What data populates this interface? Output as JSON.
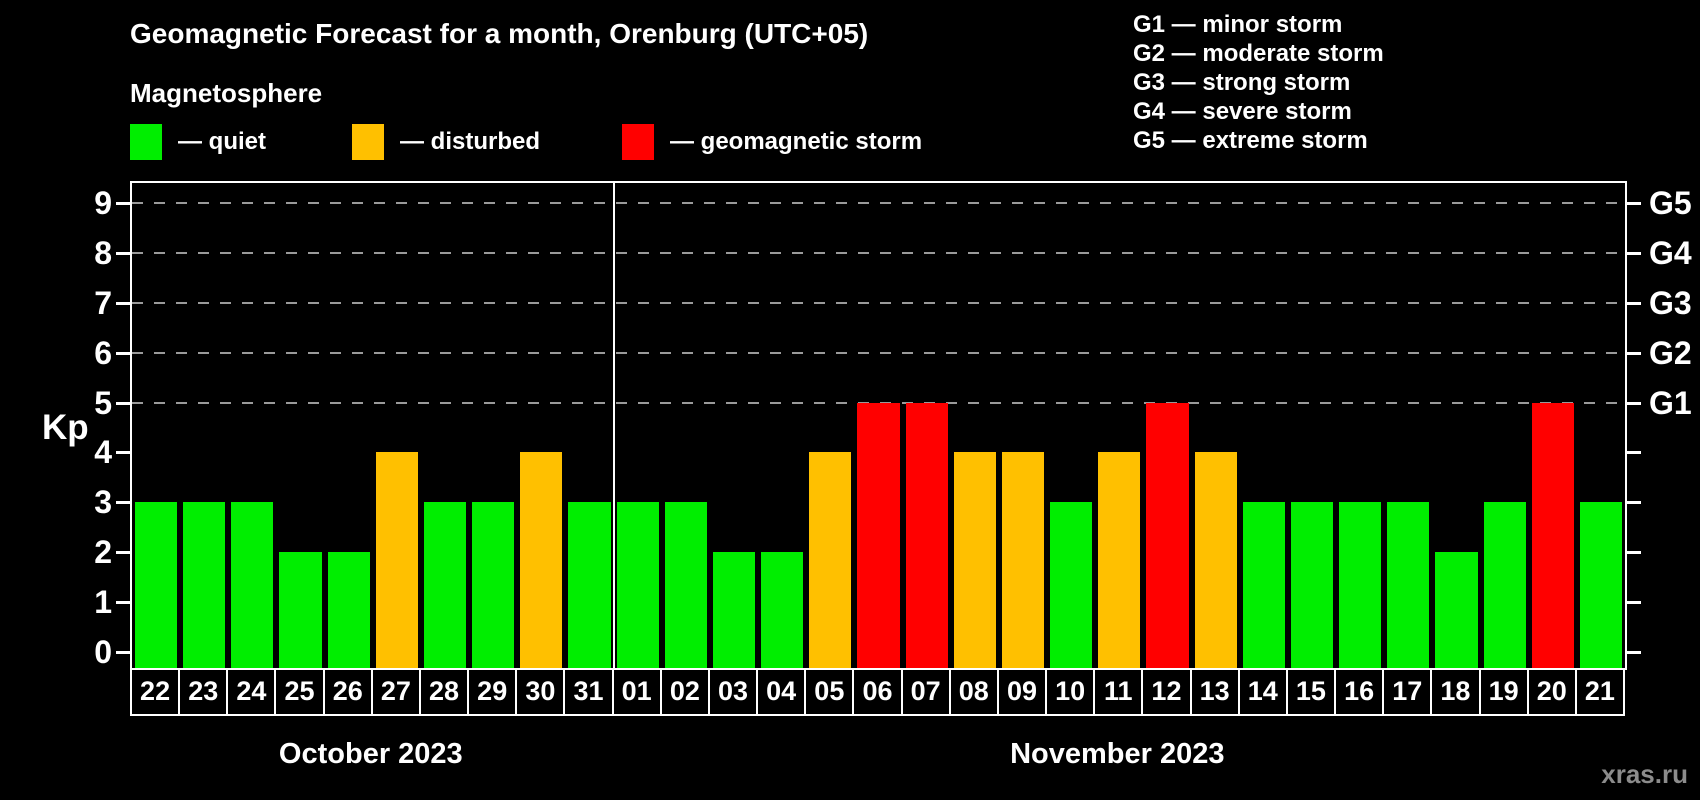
{
  "title": "Geomagnetic Forecast for a month, Orenburg (UTC+05)",
  "subtitle": "Magnetosphere",
  "watermark": "xras.ru",
  "legend": {
    "items": [
      {
        "label": "— quiet",
        "status": "quiet",
        "color": "#00ee00"
      },
      {
        "label": "— disturbed",
        "status": "disturbed",
        "color": "#ffc000"
      },
      {
        "label": "— geomagnetic storm",
        "status": "storm",
        "color": "#ff0000"
      }
    ]
  },
  "storm_scale": [
    "G1 — minor storm",
    "G2 — moderate storm",
    "G3 — strong storm",
    "G4 — severe storm",
    "G5 — extreme storm"
  ],
  "chart_data": {
    "type": "bar",
    "title": "Geomagnetic Forecast for a month, Orenburg (UTC+05)",
    "ylabel": "Kp",
    "ylim": [
      0,
      9
    ],
    "yticks": [
      0,
      1,
      2,
      3,
      4,
      5,
      6,
      7,
      8,
      9
    ],
    "gridlines_at_kp": [
      5,
      6,
      7,
      8,
      9
    ],
    "grid": "dashed horizontal at storm levels only",
    "legend_position": "top",
    "right_axis": [
      {
        "kp": 5,
        "label": "G1"
      },
      {
        "kp": 6,
        "label": "G2"
      },
      {
        "kp": 7,
        "label": "G3"
      },
      {
        "kp": 8,
        "label": "G4"
      },
      {
        "kp": 9,
        "label": "G5"
      }
    ],
    "status_colors": {
      "quiet": "#00ee00",
      "disturbed": "#ffc000",
      "storm": "#ff0000"
    },
    "months": [
      {
        "label": "October 2023",
        "days": [
          {
            "day": "22",
            "kp": 3,
            "status": "quiet"
          },
          {
            "day": "23",
            "kp": 3,
            "status": "quiet"
          },
          {
            "day": "24",
            "kp": 3,
            "status": "quiet"
          },
          {
            "day": "25",
            "kp": 2,
            "status": "quiet"
          },
          {
            "day": "26",
            "kp": 2,
            "status": "quiet"
          },
          {
            "day": "27",
            "kp": 4,
            "status": "disturbed"
          },
          {
            "day": "28",
            "kp": 3,
            "status": "quiet"
          },
          {
            "day": "29",
            "kp": 3,
            "status": "quiet"
          },
          {
            "day": "30",
            "kp": 4,
            "status": "disturbed"
          },
          {
            "day": "31",
            "kp": 3,
            "status": "quiet"
          }
        ]
      },
      {
        "label": "November 2023",
        "days": [
          {
            "day": "01",
            "kp": 3,
            "status": "quiet"
          },
          {
            "day": "02",
            "kp": 3,
            "status": "quiet"
          },
          {
            "day": "03",
            "kp": 2,
            "status": "quiet"
          },
          {
            "day": "04",
            "kp": 2,
            "status": "quiet"
          },
          {
            "day": "05",
            "kp": 4,
            "status": "disturbed"
          },
          {
            "day": "06",
            "kp": 5,
            "status": "storm"
          },
          {
            "day": "07",
            "kp": 5,
            "status": "storm"
          },
          {
            "day": "08",
            "kp": 4,
            "status": "disturbed"
          },
          {
            "day": "09",
            "kp": 4,
            "status": "disturbed"
          },
          {
            "day": "10",
            "kp": 3,
            "status": "quiet"
          },
          {
            "day": "11",
            "kp": 4,
            "status": "disturbed"
          },
          {
            "day": "12",
            "kp": 5,
            "status": "storm"
          },
          {
            "day": "13",
            "kp": 4,
            "status": "disturbed"
          },
          {
            "day": "14",
            "kp": 3,
            "status": "quiet"
          },
          {
            "day": "15",
            "kp": 3,
            "status": "quiet"
          },
          {
            "day": "16",
            "kp": 3,
            "status": "quiet"
          },
          {
            "day": "17",
            "kp": 3,
            "status": "quiet"
          },
          {
            "day": "18",
            "kp": 2,
            "status": "quiet"
          },
          {
            "day": "19",
            "kp": 3,
            "status": "quiet"
          },
          {
            "day": "20",
            "kp": 5,
            "status": "storm"
          },
          {
            "day": "21",
            "kp": 3,
            "status": "quiet"
          }
        ]
      }
    ]
  }
}
